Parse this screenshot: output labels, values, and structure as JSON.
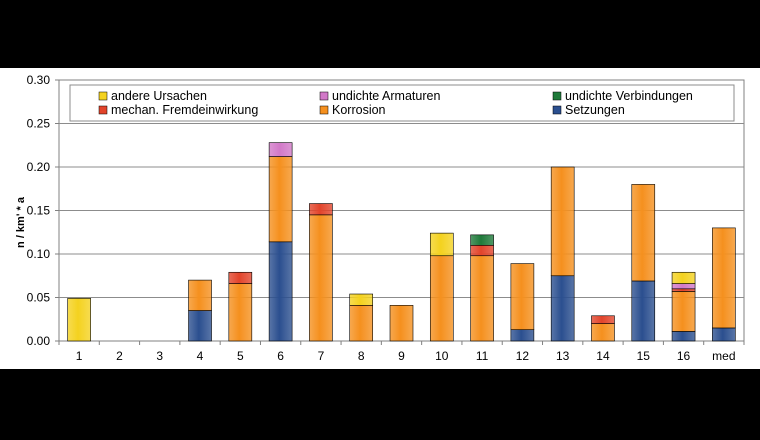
{
  "chart_data": {
    "type": "bar",
    "stacked": true,
    "title": "",
    "xlabel": "",
    "ylabel": "n / km' * a",
    "ylim": [
      0,
      0.3
    ],
    "yticks": [
      0.0,
      0.05,
      0.1,
      0.15,
      0.2,
      0.25,
      0.3
    ],
    "ytick_labels": [
      "0.00",
      "0.05",
      "0.10",
      "0.15",
      "0.20",
      "0.25",
      "0.30"
    ],
    "grid": true,
    "legend_position": "top",
    "categories": [
      "1",
      "2",
      "3",
      "4",
      "5",
      "6",
      "7",
      "8",
      "9",
      "10",
      "11",
      "12",
      "13",
      "14",
      "15",
      "16",
      "med"
    ],
    "series": [
      {
        "name": "Setzungen",
        "color": "#2b4f8f",
        "values": [
          0,
          0,
          0,
          0.035,
          0,
          0.114,
          0,
          0,
          0,
          0,
          0,
          0.013,
          0.075,
          0,
          0.069,
          0.011,
          0.015
        ]
      },
      {
        "name": "Korrosion",
        "color": "#f5901e",
        "values": [
          0,
          0,
          0,
          0.035,
          0.066,
          0.098,
          0.145,
          0.041,
          0.041,
          0.098,
          0.098,
          0.076,
          0.125,
          0.02,
          0.111,
          0.046,
          0.115
        ]
      },
      {
        "name": "mechan. Fremdeinwirkung",
        "color": "#e2442b",
        "values": [
          0,
          0,
          0,
          0,
          0.013,
          0,
          0.013,
          0,
          0,
          0,
          0.012,
          0,
          0,
          0.009,
          0,
          0.003,
          0
        ]
      },
      {
        "name": "undichte Verbindungen",
        "color": "#1f7a3a",
        "values": [
          0,
          0,
          0,
          0,
          0,
          0,
          0,
          0,
          0,
          0,
          0.012,
          0,
          0,
          0,
          0,
          0,
          0
        ]
      },
      {
        "name": "undichte Armaturen",
        "color": "#d279c8",
        "values": [
          0,
          0,
          0,
          0,
          0,
          0.016,
          0,
          0,
          0,
          0,
          0,
          0,
          0,
          0,
          0,
          0.006,
          0
        ]
      },
      {
        "name": "andere Ursachen",
        "color": "#f4d21f",
        "values": [
          0.049,
          0,
          0,
          0,
          0,
          0,
          0,
          0.013,
          0,
          0.026,
          0,
          0,
          0,
          0,
          0,
          0.013,
          0
        ]
      }
    ],
    "legend_order": [
      "andere Ursachen",
      "undichte Armaturen",
      "undichte Verbindungen",
      "mechan. Fremdeinwirkung",
      "Korrosion",
      "Setzungen"
    ]
  }
}
